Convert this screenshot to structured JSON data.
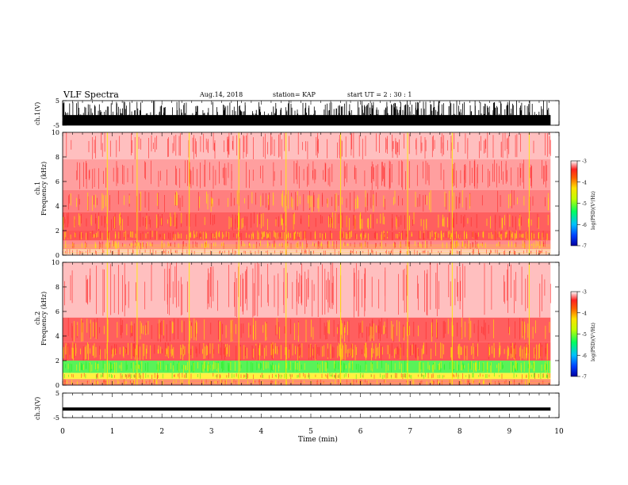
{
  "header": {
    "title": "VLF Spectra",
    "date": "Aug.14, 2018",
    "station": "station= KAP",
    "start": "start  UT =   2 : 30 : 1"
  },
  "colors": {
    "spectrogram_background": "#ffffff",
    "low_power": "#ff2a2a",
    "mid_power": "#ffee00",
    "high_power": "#22ee22",
    "waveform": "#000000"
  },
  "chart_data": [
    {
      "type": "line",
      "name": "ch.1 waveform",
      "ylabel": "ch.1(V)",
      "ylim": [
        -5,
        5
      ],
      "yticks": [
        "5",
        "-5"
      ],
      "xlim": [
        0,
        9.83
      ],
      "description_values": {
        "baseline": -1.5,
        "spike_max": 5,
        "spike_min": -5
      }
    },
    {
      "type": "heatmap",
      "name": "ch.1 spectrogram",
      "ylabel": "ch.1\nFrequency (kHz)",
      "ylim": [
        0,
        10
      ],
      "yticks": [
        "0",
        "2",
        "4",
        "6",
        "8",
        "10"
      ],
      "xlim": [
        0,
        9.83
      ],
      "bands": [
        {
          "f0": 0.0,
          "f1": 0.5,
          "level": "red-sparse"
        },
        {
          "f0": 0.5,
          "f1": 1.2,
          "level": "yellow-lines"
        },
        {
          "f0": 1.2,
          "f1": 2.0,
          "level": "yellow"
        },
        {
          "f0": 2.0,
          "f1": 3.5,
          "level": "red-dense"
        },
        {
          "f0": 3.5,
          "f1": 5.3,
          "level": "red"
        },
        {
          "f0": 5.3,
          "f1": 7.8,
          "level": "red-medium"
        },
        {
          "f0": 7.8,
          "f1": 10.0,
          "level": "red-light"
        }
      ]
    },
    {
      "type": "heatmap",
      "name": "ch.2 spectrogram",
      "ylabel": "ch.2\nFrequency (kHz)",
      "ylim": [
        0,
        10
      ],
      "yticks": [
        "0",
        "2",
        "4",
        "6",
        "8",
        "10"
      ],
      "xlim": [
        0,
        9.83
      ],
      "bands": [
        {
          "f0": 0.0,
          "f1": 0.5,
          "level": "red"
        },
        {
          "f0": 0.5,
          "f1": 1.0,
          "level": "yellow-green"
        },
        {
          "f0": 1.0,
          "f1": 2.0,
          "level": "green"
        },
        {
          "f0": 2.0,
          "f1": 3.5,
          "level": "yellow"
        },
        {
          "f0": 3.5,
          "f1": 5.5,
          "level": "red-dense"
        },
        {
          "f0": 5.5,
          "f1": 10.0,
          "level": "red-light"
        }
      ]
    },
    {
      "type": "line",
      "name": "ch.3 waveform",
      "ylabel": "ch.3(V)",
      "ylim": [
        -5,
        5
      ],
      "yticks": [
        "5",
        "-5"
      ],
      "xlim": [
        0,
        9.83
      ],
      "description_values": {
        "baseline": -1.5
      }
    }
  ],
  "colorbar": {
    "label": "log(PSD)(V²/Hz)",
    "ticks": [
      "-3",
      "-4",
      "-5",
      "-6",
      "-7"
    ],
    "range": [
      -7,
      -3
    ]
  },
  "xaxis": {
    "label": "Time  (min)",
    "ticks": [
      "0",
      "1",
      "2",
      "3",
      "4",
      "5",
      "6",
      "7",
      "8",
      "9",
      "10"
    ],
    "range": [
      0,
      10
    ]
  }
}
